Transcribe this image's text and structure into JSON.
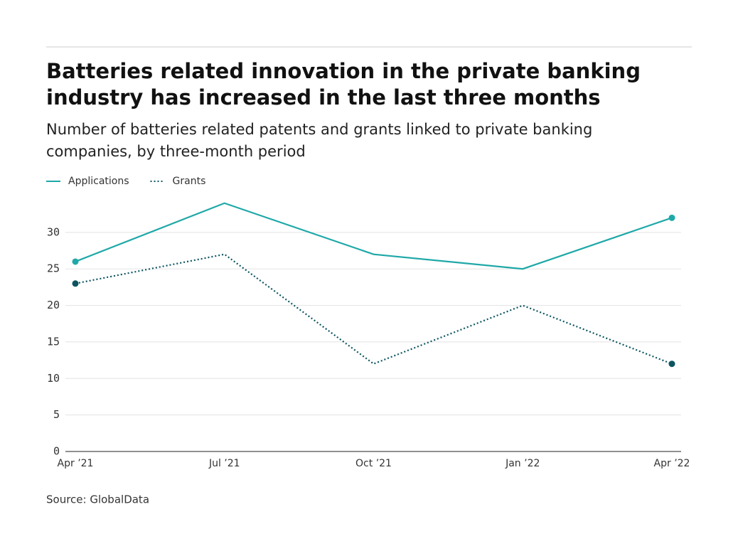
{
  "chart_data": {
    "type": "line",
    "title": [
      "Batteries related innovation in the private banking",
      "industry has increased in the last three months"
    ],
    "subtitle": [
      "Number of batteries related patents and grants linked to private banking",
      "companies, by three-month period"
    ],
    "categories": [
      "Apr ’21",
      "Jul ’21",
      "Oct ’21",
      "Jan ’22",
      "Apr ’22"
    ],
    "series": [
      {
        "name": "Applications",
        "color": "#1fa8a8",
        "dash": "solid",
        "values": [
          26,
          34,
          27,
          25,
          32
        ]
      },
      {
        "name": "Grants",
        "color": "#0c5560",
        "dash": "dotted",
        "values": [
          23,
          27,
          12,
          20,
          12
        ]
      }
    ],
    "ylim": [
      0,
      35
    ],
    "yticks": [
      0,
      5,
      10,
      15,
      20,
      25,
      30
    ],
    "grid": true,
    "legend": "top-left",
    "source": "Source: GlobalData"
  }
}
